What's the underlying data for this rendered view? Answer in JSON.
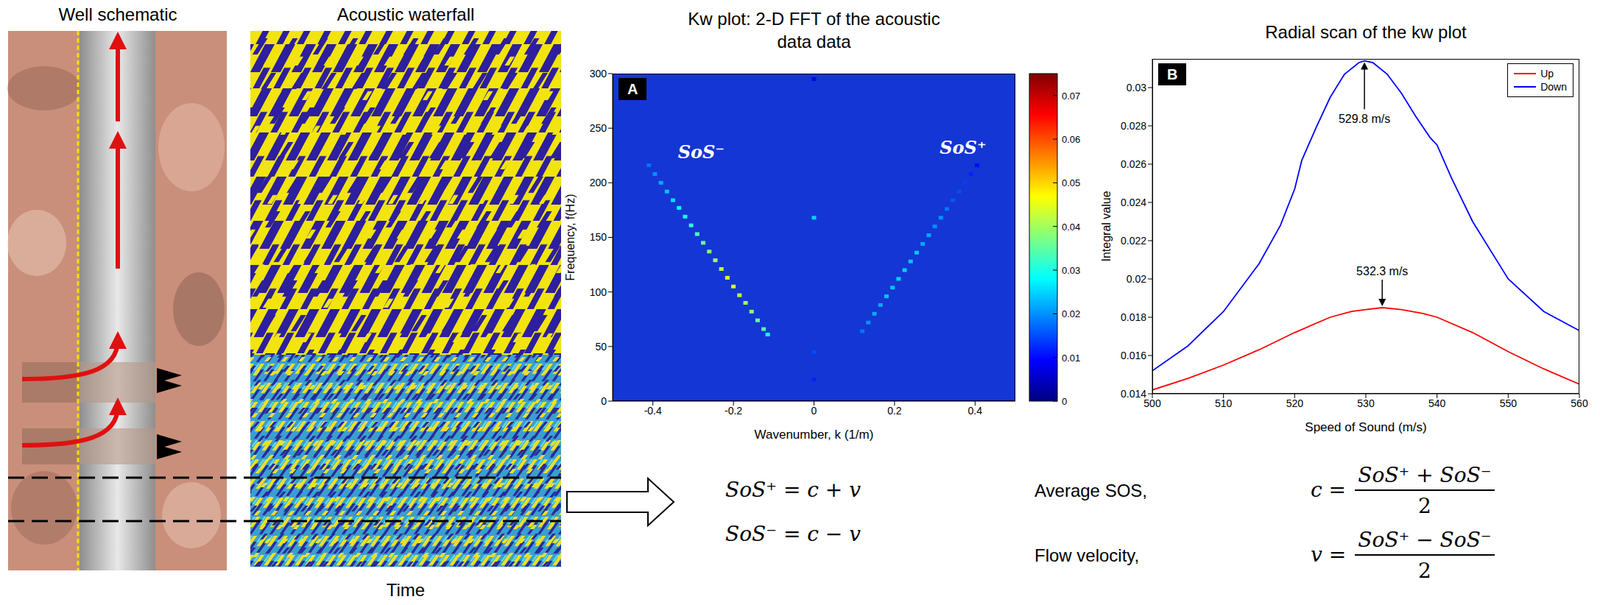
{
  "well_schematic": {
    "title": "Well schematic"
  },
  "acoustic_waterfall": {
    "title": "Acoustic waterfall",
    "x_label": "Time"
  },
  "chart_data": [
    {
      "type": "heatmap",
      "title": "Kw plot: 2-D FFT of the acoustic data data",
      "panel": "A",
      "x_label": "Wavenumber, k (1/m)",
      "y_label": "Frequency, f(Hz)",
      "xlim": [
        -0.5,
        0.5
      ],
      "xticks": [
        -0.4,
        -0.2,
        0,
        0.2,
        0.4
      ],
      "ylim": [
        0,
        300
      ],
      "yticks": [
        0,
        50,
        100,
        150,
        200,
        250,
        300
      ],
      "grid": false,
      "cells": [
        {
          "k": -0.41,
          "f": 216,
          "value": 0.018
        },
        {
          "k": -0.395,
          "f": 208,
          "value": 0.02
        },
        {
          "k": -0.38,
          "f": 200,
          "value": 0.022
        },
        {
          "k": -0.365,
          "f": 192,
          "value": 0.024
        },
        {
          "k": -0.35,
          "f": 184,
          "value": 0.026
        },
        {
          "k": -0.335,
          "f": 177,
          "value": 0.028
        },
        {
          "k": -0.32,
          "f": 169,
          "value": 0.03
        },
        {
          "k": -0.305,
          "f": 161,
          "value": 0.032
        },
        {
          "k": -0.29,
          "f": 153,
          "value": 0.034
        },
        {
          "k": -0.275,
          "f": 145,
          "value": 0.036
        },
        {
          "k": -0.26,
          "f": 137,
          "value": 0.038
        },
        {
          "k": -0.245,
          "f": 129,
          "value": 0.04
        },
        {
          "k": -0.23,
          "f": 121,
          "value": 0.042
        },
        {
          "k": -0.215,
          "f": 113,
          "value": 0.045
        },
        {
          "k": -0.2,
          "f": 105,
          "value": 0.044
        },
        {
          "k": -0.185,
          "f": 97,
          "value": 0.042
        },
        {
          "k": -0.17,
          "f": 90,
          "value": 0.04
        },
        {
          "k": -0.155,
          "f": 82,
          "value": 0.038
        },
        {
          "k": -0.14,
          "f": 74,
          "value": 0.036
        },
        {
          "k": -0.125,
          "f": 66,
          "value": 0.034
        },
        {
          "k": -0.115,
          "f": 61,
          "value": 0.03
        },
        {
          "k": 0.12,
          "f": 64,
          "value": 0.018
        },
        {
          "k": 0.135,
          "f": 72,
          "value": 0.02
        },
        {
          "k": 0.15,
          "f": 80,
          "value": 0.022
        },
        {
          "k": 0.165,
          "f": 88,
          "value": 0.022
        },
        {
          "k": 0.18,
          "f": 96,
          "value": 0.024
        },
        {
          "k": 0.195,
          "f": 104,
          "value": 0.024
        },
        {
          "k": 0.21,
          "f": 112,
          "value": 0.025
        },
        {
          "k": 0.225,
          "f": 120,
          "value": 0.025
        },
        {
          "k": 0.24,
          "f": 128,
          "value": 0.024
        },
        {
          "k": 0.255,
          "f": 136,
          "value": 0.024
        },
        {
          "k": 0.27,
          "f": 144,
          "value": 0.022
        },
        {
          "k": 0.285,
          "f": 152,
          "value": 0.022
        },
        {
          "k": 0.3,
          "f": 160,
          "value": 0.02
        },
        {
          "k": 0.315,
          "f": 168,
          "value": 0.02
        },
        {
          "k": 0.33,
          "f": 176,
          "value": 0.018
        },
        {
          "k": 0.345,
          "f": 184,
          "value": 0.016
        },
        {
          "k": 0.36,
          "f": 192,
          "value": 0.015
        },
        {
          "k": 0.375,
          "f": 200,
          "value": 0.014
        },
        {
          "k": 0.39,
          "f": 208,
          "value": 0.012
        },
        {
          "k": 0.405,
          "f": 216,
          "value": 0.01
        },
        {
          "k": 0,
          "f": 168,
          "value": 0.025
        },
        {
          "k": 0,
          "f": 45,
          "value": 0.015
        },
        {
          "k": 0,
          "f": 20,
          "value": 0.012
        },
        {
          "k": 0,
          "f": 295,
          "value": 0.008
        }
      ],
      "colorbar": {
        "range": [
          0,
          0.075
        ],
        "ticks": [
          0,
          0.01,
          0.02,
          0.03,
          0.04,
          0.05,
          0.06,
          0.07
        ]
      },
      "annotations": [
        {
          "text": "SoS⁻",
          "x": -0.28,
          "y": 228
        },
        {
          "text": "SoS⁺",
          "x": 0.37,
          "y": 232
        }
      ]
    },
    {
      "type": "line",
      "title": "Radial scan of the kw plot",
      "panel": "B",
      "x_label": "Speed of Sound (m/s)",
      "y_label": "Integral value",
      "xlim": [
        500,
        560
      ],
      "xticks": [
        500,
        510,
        520,
        530,
        540,
        550,
        560
      ],
      "ylim": [
        0.014,
        0.0315
      ],
      "yticks": [
        0.014,
        0.016,
        0.018,
        0.02,
        0.022,
        0.024,
        0.026,
        0.028,
        0.03
      ],
      "grid": false,
      "legend": "upper right",
      "series": [
        {
          "name": "Up",
          "color": "#ff0000",
          "x": [
            500,
            505,
            510,
            515,
            520,
            525,
            528,
            530,
            532.3,
            535,
            538,
            540,
            545,
            550,
            555,
            560
          ],
          "values": [
            0.0142,
            0.0148,
            0.0155,
            0.0163,
            0.0172,
            0.018,
            0.0183,
            0.0184,
            0.0185,
            0.0184,
            0.0182,
            0.018,
            0.0172,
            0.0162,
            0.0153,
            0.0145
          ]
        },
        {
          "name": "Down",
          "color": "#0000ff",
          "x": [
            500,
            505,
            510,
            515,
            518,
            520,
            521,
            523,
            525,
            527,
            529,
            529.8,
            531,
            533,
            535,
            537,
            539,
            540,
            542,
            545,
            550,
            555,
            560
          ],
          "values": [
            0.0152,
            0.0165,
            0.0183,
            0.0208,
            0.0228,
            0.0247,
            0.0262,
            0.0279,
            0.0295,
            0.0307,
            0.0313,
            0.0314,
            0.0313,
            0.0307,
            0.0297,
            0.0285,
            0.0274,
            0.027,
            0.0253,
            0.023,
            0.02,
            0.0183,
            0.0173
          ]
        }
      ],
      "annotations": [
        {
          "text": "529.8 m/s",
          "x": 529.8,
          "y": 0.0314
        },
        {
          "text": "532.3 m/s",
          "x": 532.3,
          "y": 0.0185
        }
      ]
    }
  ],
  "equations": [
    {
      "text": "SoS⁺ = c + v"
    },
    {
      "text": "SoS⁻ = c − v"
    }
  ],
  "formulas": [
    {
      "label": "Average SOS,",
      "lhs": "c =",
      "numerator": "SoS⁺ + SoS⁻",
      "denominator": "2"
    },
    {
      "label": "Flow velocity,",
      "lhs": "v =",
      "numerator": "SoS⁺ − SoS⁻",
      "denominator": "2"
    }
  ]
}
